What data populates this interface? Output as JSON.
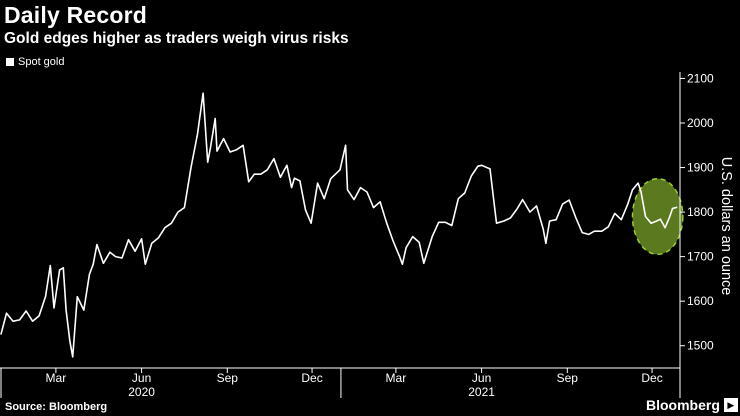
{
  "header": {
    "title": "Daily Record",
    "subtitle": "Gold edges higher as traders weigh virus risks"
  },
  "footer": {
    "source": "Source: Bloomberg",
    "brand": "Bloomberg",
    "brand_icon": "play-icon"
  },
  "colors": {
    "background": "#000000",
    "line": "#ffffff",
    "highlight": "#6b8e23",
    "highlight_border": "#9acd32"
  },
  "chart_data": {
    "type": "line",
    "title": "Daily Record",
    "subtitle": "Gold edges higher as traders weigh virus risks",
    "ylabel": "U.S. dollars an ounce",
    "xlabel": "",
    "ylim": [
      1450,
      2110
    ],
    "yticks": [
      1500,
      1600,
      1700,
      1800,
      1900,
      2000,
      2100
    ],
    "xlim": [
      "2020-01-01",
      "2021-12-31"
    ],
    "xticks": [
      {
        "date": "2020-03-01",
        "label": "Mar"
      },
      {
        "date": "2020-06-01",
        "label": "Jun"
      },
      {
        "date": "2020-09-01",
        "label": "Sep"
      },
      {
        "date": "2020-12-01",
        "label": "Dec"
      },
      {
        "date": "2021-03-01",
        "label": "Mar"
      },
      {
        "date": "2021-06-01",
        "label": "Jun"
      },
      {
        "date": "2021-09-01",
        "label": "Sep"
      },
      {
        "date": "2021-12-01",
        "label": "Dec"
      }
    ],
    "year_labels": [
      {
        "date": "2020-06-01",
        "label": "2020"
      },
      {
        "date": "2021-06-01",
        "label": "2021"
      }
    ],
    "grid": false,
    "legend": "top-left",
    "series": [
      {
        "name": "Spot gold",
        "points": [
          [
            "2020-01-02",
            1525
          ],
          [
            "2020-01-08",
            1573
          ],
          [
            "2020-01-15",
            1555
          ],
          [
            "2020-01-22",
            1558
          ],
          [
            "2020-01-29",
            1578
          ],
          [
            "2020-02-05",
            1555
          ],
          [
            "2020-02-12",
            1567
          ],
          [
            "2020-02-19",
            1611
          ],
          [
            "2020-02-24",
            1680
          ],
          [
            "2020-02-28",
            1585
          ],
          [
            "2020-03-05",
            1670
          ],
          [
            "2020-03-09",
            1675
          ],
          [
            "2020-03-12",
            1580
          ],
          [
            "2020-03-16",
            1510
          ],
          [
            "2020-03-19",
            1475
          ],
          [
            "2020-03-24",
            1610
          ],
          [
            "2020-03-31",
            1580
          ],
          [
            "2020-04-06",
            1660
          ],
          [
            "2020-04-10",
            1683
          ],
          [
            "2020-04-14",
            1727
          ],
          [
            "2020-04-21",
            1685
          ],
          [
            "2020-04-28",
            1710
          ],
          [
            "2020-05-04",
            1700
          ],
          [
            "2020-05-11",
            1697
          ],
          [
            "2020-05-18",
            1738
          ],
          [
            "2020-05-25",
            1712
          ],
          [
            "2020-06-01",
            1740
          ],
          [
            "2020-06-05",
            1683
          ],
          [
            "2020-06-12",
            1730
          ],
          [
            "2020-06-19",
            1742
          ],
          [
            "2020-06-26",
            1765
          ],
          [
            "2020-07-03",
            1775
          ],
          [
            "2020-07-10",
            1800
          ],
          [
            "2020-07-17",
            1810
          ],
          [
            "2020-07-24",
            1900
          ],
          [
            "2020-07-31",
            1975
          ],
          [
            "2020-08-06",
            2067
          ],
          [
            "2020-08-11",
            1912
          ],
          [
            "2020-08-14",
            1945
          ],
          [
            "2020-08-19",
            2010
          ],
          [
            "2020-08-21",
            1937
          ],
          [
            "2020-08-28",
            1965
          ],
          [
            "2020-09-04",
            1935
          ],
          [
            "2020-09-11",
            1940
          ],
          [
            "2020-09-18",
            1950
          ],
          [
            "2020-09-24",
            1868
          ],
          [
            "2020-09-30",
            1885
          ],
          [
            "2020-10-07",
            1885
          ],
          [
            "2020-10-14",
            1895
          ],
          [
            "2020-10-21",
            1920
          ],
          [
            "2020-10-28",
            1878
          ],
          [
            "2020-11-04",
            1905
          ],
          [
            "2020-11-09",
            1855
          ],
          [
            "2020-11-12",
            1876
          ],
          [
            "2020-11-18",
            1870
          ],
          [
            "2020-11-24",
            1805
          ],
          [
            "2020-11-30",
            1775
          ],
          [
            "2020-12-07",
            1865
          ],
          [
            "2020-12-14",
            1830
          ],
          [
            "2020-12-21",
            1875
          ],
          [
            "2020-12-31",
            1895
          ],
          [
            "2021-01-06",
            1950
          ],
          [
            "2021-01-08",
            1850
          ],
          [
            "2021-01-15",
            1828
          ],
          [
            "2021-01-22",
            1855
          ],
          [
            "2021-01-29",
            1845
          ],
          [
            "2021-02-05",
            1810
          ],
          [
            "2021-02-12",
            1823
          ],
          [
            "2021-02-19",
            1776
          ],
          [
            "2021-02-26",
            1735
          ],
          [
            "2021-03-05",
            1700
          ],
          [
            "2021-03-08",
            1683
          ],
          [
            "2021-03-12",
            1720
          ],
          [
            "2021-03-19",
            1745
          ],
          [
            "2021-03-26",
            1732
          ],
          [
            "2021-03-31",
            1685
          ],
          [
            "2021-04-09",
            1745
          ],
          [
            "2021-04-16",
            1777
          ],
          [
            "2021-04-23",
            1777
          ],
          [
            "2021-04-30",
            1770
          ],
          [
            "2021-05-07",
            1830
          ],
          [
            "2021-05-14",
            1843
          ],
          [
            "2021-05-21",
            1881
          ],
          [
            "2021-05-28",
            1903
          ],
          [
            "2021-06-01",
            1905
          ],
          [
            "2021-06-10",
            1897
          ],
          [
            "2021-06-17",
            1775
          ],
          [
            "2021-06-25",
            1780
          ],
          [
            "2021-07-02",
            1787
          ],
          [
            "2021-07-09",
            1807
          ],
          [
            "2021-07-15",
            1828
          ],
          [
            "2021-07-23",
            1800
          ],
          [
            "2021-07-30",
            1814
          ],
          [
            "2021-08-06",
            1763
          ],
          [
            "2021-08-09",
            1730
          ],
          [
            "2021-08-13",
            1780
          ],
          [
            "2021-08-20",
            1783
          ],
          [
            "2021-08-27",
            1818
          ],
          [
            "2021-09-03",
            1827
          ],
          [
            "2021-09-10",
            1788
          ],
          [
            "2021-09-17",
            1754
          ],
          [
            "2021-09-24",
            1750
          ],
          [
            "2021-09-30",
            1757
          ],
          [
            "2021-10-08",
            1757
          ],
          [
            "2021-10-15",
            1767
          ],
          [
            "2021-10-22",
            1797
          ],
          [
            "2021-10-29",
            1783
          ],
          [
            "2021-11-05",
            1818
          ],
          [
            "2021-11-10",
            1850
          ],
          [
            "2021-11-16",
            1865
          ],
          [
            "2021-11-19",
            1847
          ],
          [
            "2021-11-24",
            1790
          ],
          [
            "2021-11-30",
            1775
          ],
          [
            "2021-12-06",
            1780
          ],
          [
            "2021-12-10",
            1784
          ],
          [
            "2021-12-15",
            1765
          ],
          [
            "2021-12-20",
            1790
          ],
          [
            "2021-12-23",
            1808
          ],
          [
            "2021-12-28",
            1811
          ]
        ]
      }
    ],
    "annotations": [
      {
        "type": "ellipse-highlight",
        "x_from": "2021-11-10",
        "x_to": "2022-01-03",
        "y_from": 1705,
        "y_to": 1875
      }
    ]
  }
}
